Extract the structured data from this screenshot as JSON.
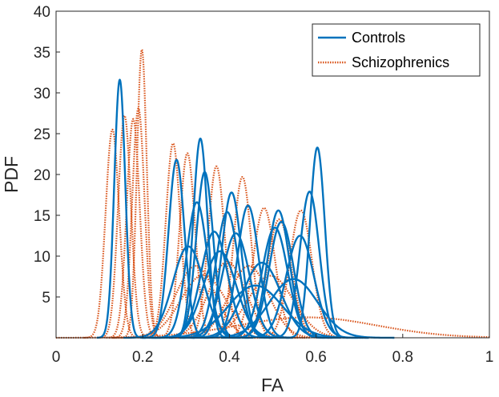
{
  "chart_data": {
    "type": "line",
    "title": "",
    "xlabel": "FA",
    "ylabel": "PDF",
    "xlim": [
      0,
      1
    ],
    "ylim": [
      0,
      40
    ],
    "xticks": [
      0,
      0.2,
      0.4,
      0.6,
      0.8,
      1
    ],
    "xtick_labels": [
      "0",
      "0.2",
      "0.4",
      "0.6",
      "0.8",
      "1"
    ],
    "yticks": [
      5,
      10,
      15,
      20,
      25,
      30,
      35,
      40
    ],
    "ytick_labels": [
      "5",
      "10",
      "15",
      "20",
      "25",
      "30",
      "35",
      "40"
    ],
    "grid": false,
    "legend_position": "top-right",
    "colors": {
      "Controls": "#0072BD",
      "Schizophrenics": "#D95319"
    },
    "series": [
      {
        "name": "Controls",
        "style": "solid",
        "curves": [
          {
            "mu": 0.147,
            "peak": 31.6
          },
          {
            "mu": 0.278,
            "peak": 21.8
          },
          {
            "mu": 0.333,
            "peak": 24.4
          },
          {
            "mu": 0.343,
            "peak": 20.3
          },
          {
            "mu": 0.325,
            "peak": 16.6
          },
          {
            "mu": 0.305,
            "peak": 11.2
          },
          {
            "mu": 0.365,
            "peak": 13.0
          },
          {
            "mu": 0.378,
            "peak": 10.6
          },
          {
            "mu": 0.405,
            "peak": 17.8
          },
          {
            "mu": 0.395,
            "peak": 15.4
          },
          {
            "mu": 0.415,
            "peak": 12.8
          },
          {
            "mu": 0.443,
            "peak": 16.2
          },
          {
            "mu": 0.475,
            "peak": 9.2
          },
          {
            "mu": 0.513,
            "peak": 15.6
          },
          {
            "mu": 0.52,
            "peak": 14.2
          },
          {
            "mu": 0.505,
            "peak": 13.5
          },
          {
            "mu": 0.548,
            "peak": 7.2
          },
          {
            "mu": 0.563,
            "peak": 12.5
          },
          {
            "mu": 0.585,
            "peak": 17.9
          },
          {
            "mu": 0.603,
            "peak": 23.3
          },
          {
            "mu": 0.46,
            "peak": 6.4
          }
        ]
      },
      {
        "name": "Schizophrenics",
        "style": "dotted",
        "curves": [
          {
            "mu": 0.13,
            "peak": 25.5
          },
          {
            "mu": 0.158,
            "peak": 27.2
          },
          {
            "mu": 0.178,
            "peak": 26.8
          },
          {
            "mu": 0.19,
            "peak": 28.1
          },
          {
            "mu": 0.198,
            "peak": 35.3
          },
          {
            "mu": 0.27,
            "peak": 23.8
          },
          {
            "mu": 0.303,
            "peak": 22.6
          },
          {
            "mu": 0.322,
            "peak": 8.8
          },
          {
            "mu": 0.34,
            "peak": 7.7
          },
          {
            "mu": 0.37,
            "peak": 21.0
          },
          {
            "mu": 0.395,
            "peak": 9.3
          },
          {
            "mu": 0.43,
            "peak": 19.7
          },
          {
            "mu": 0.445,
            "peak": 8.8
          },
          {
            "mu": 0.48,
            "peak": 15.9
          },
          {
            "mu": 0.495,
            "peak": 7.6
          },
          {
            "mu": 0.515,
            "peak": 14.5
          },
          {
            "mu": 0.565,
            "peak": 15.6
          },
          {
            "mu": 0.58,
            "peak": 2.5
          }
        ]
      }
    ]
  }
}
